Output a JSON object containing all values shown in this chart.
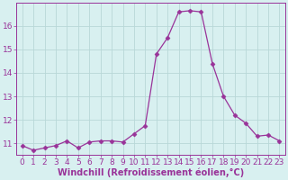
{
  "x": [
    0,
    1,
    2,
    3,
    4,
    5,
    6,
    7,
    8,
    9,
    10,
    11,
    12,
    13,
    14,
    15,
    16,
    17,
    18,
    19,
    20,
    21,
    22,
    23
  ],
  "y": [
    10.9,
    10.7,
    10.8,
    10.9,
    11.1,
    10.8,
    11.05,
    11.1,
    11.1,
    11.05,
    11.4,
    11.75,
    14.8,
    15.5,
    16.6,
    16.65,
    16.6,
    14.4,
    13.0,
    12.2,
    11.85,
    11.3,
    11.35,
    11.1
  ],
  "line_color": "#993399",
  "marker": "D",
  "marker_size": 2.5,
  "bg_color": "#d8f0f0",
  "grid_color": "#b8d8d8",
  "xlabel": "Windchill (Refroidissement éolien,°C)",
  "xlim": [
    -0.5,
    23.5
  ],
  "ylim": [
    10.5,
    17.0
  ],
  "yticks": [
    11,
    12,
    13,
    14,
    15,
    16
  ],
  "xticks": [
    0,
    1,
    2,
    3,
    4,
    5,
    6,
    7,
    8,
    9,
    10,
    11,
    12,
    13,
    14,
    15,
    16,
    17,
    18,
    19,
    20,
    21,
    22,
    23
  ],
  "label_color": "#993399",
  "xlabel_fontsize": 7,
  "tick_fontsize": 6.5
}
